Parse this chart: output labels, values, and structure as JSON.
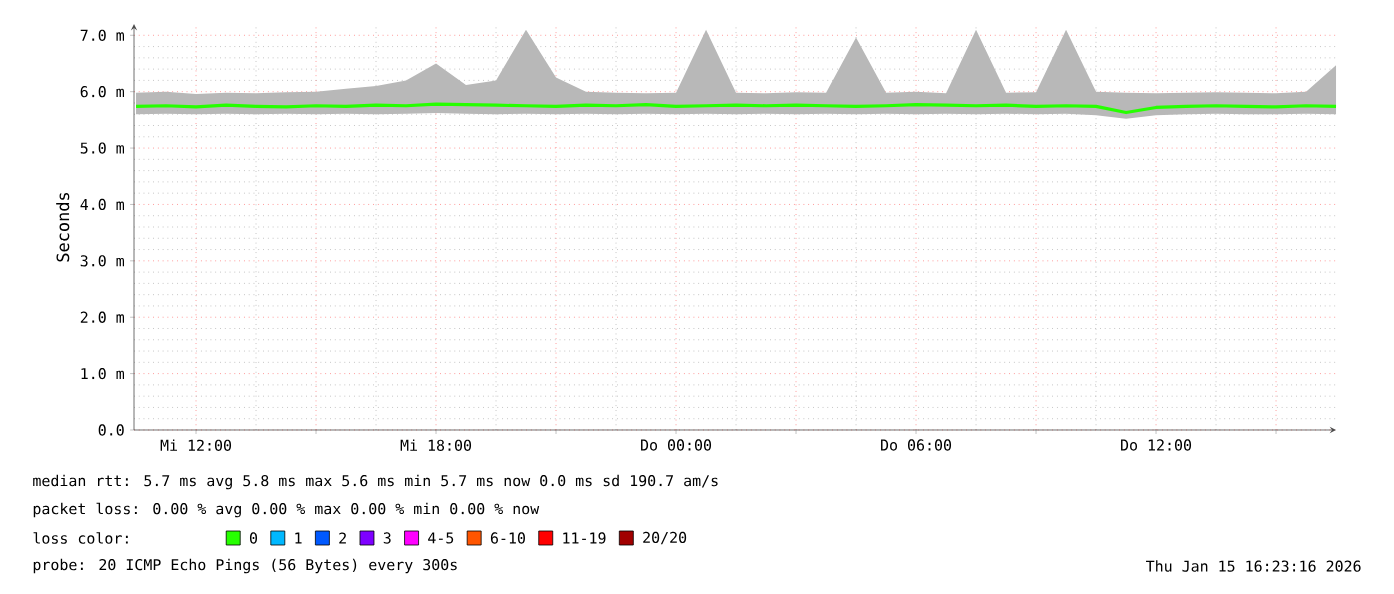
{
  "chart_data": {
    "type": "line",
    "ylabel": "Seconds",
    "legend_title": "loss color:",
    "legend": "bottom",
    "grid": true,
    "x": [
      "2026-01-14T10:30",
      "2026-01-14T11:15",
      "2026-01-14T12:00",
      "2026-01-14T12:45",
      "2026-01-14T13:30",
      "2026-01-14T14:15",
      "2026-01-14T15:00",
      "2026-01-14T15:45",
      "2026-01-14T16:30",
      "2026-01-14T17:15",
      "2026-01-14T18:00",
      "2026-01-14T18:45",
      "2026-01-14T19:30",
      "2026-01-14T20:15",
      "2026-01-14T21:00",
      "2026-01-14T21:45",
      "2026-01-14T22:30",
      "2026-01-14T23:15",
      "2026-01-15T00:00",
      "2026-01-15T00:45",
      "2026-01-15T01:30",
      "2026-01-15T02:15",
      "2026-01-15T03:00",
      "2026-01-15T03:45",
      "2026-01-15T04:30",
      "2026-01-15T05:15",
      "2026-01-15T06:00",
      "2026-01-15T06:45",
      "2026-01-15T07:30",
      "2026-01-15T08:15",
      "2026-01-15T09:00",
      "2026-01-15T09:45",
      "2026-01-15T10:30",
      "2026-01-15T11:15",
      "2026-01-15T12:00",
      "2026-01-15T12:45",
      "2026-01-15T13:30",
      "2026-01-15T14:15",
      "2026-01-15T15:00",
      "2026-01-15T15:45",
      "2026-01-15T16:30"
    ],
    "xlim": [
      "2026-01-14T10:27",
      "2026-01-15T16:30"
    ],
    "xticks": [
      {
        "value": "2026-01-14T12:00",
        "label": "Mi 12:00"
      },
      {
        "value": "2026-01-14T15:00",
        "label": null
      },
      {
        "value": "2026-01-14T18:00",
        "label": "Mi 18:00"
      },
      {
        "value": "2026-01-14T21:00",
        "label": null
      },
      {
        "value": "2026-01-15T00:00",
        "label": "Do 00:00"
      },
      {
        "value": "2026-01-15T03:00",
        "label": null
      },
      {
        "value": "2026-01-15T06:00",
        "label": "Do 06:00"
      },
      {
        "value": "2026-01-15T09:00",
        "label": null
      },
      {
        "value": "2026-01-15T12:00",
        "label": "Do 12:00"
      },
      {
        "value": "2026-01-15T15:00",
        "label": null
      }
    ],
    "ylim": [
      0,
      7.2
    ],
    "yticks": [
      {
        "value": 0,
        "label": "0.0"
      },
      {
        "value": 1,
        "label": "1.0 m"
      },
      {
        "value": 2,
        "label": "2.0 m"
      },
      {
        "value": 3,
        "label": "3.0 m"
      },
      {
        "value": 4,
        "label": "4.0 m"
      },
      {
        "value": 5,
        "label": "5.0 m"
      },
      {
        "value": 6,
        "label": "6.0 m"
      },
      {
        "value": 7,
        "label": "7.0 m"
      }
    ],
    "series": [
      {
        "name": "0",
        "color": "#26ff00",
        "values": [
          5.74,
          5.75,
          5.73,
          5.76,
          5.74,
          5.73,
          5.75,
          5.74,
          5.76,
          5.75,
          5.78,
          5.77,
          5.76,
          5.75,
          5.74,
          5.76,
          5.75,
          5.77,
          5.74,
          5.75,
          5.76,
          5.75,
          5.76,
          5.75,
          5.74,
          5.75,
          5.77,
          5.76,
          5.75,
          5.76,
          5.74,
          5.75,
          5.74,
          5.63,
          5.72,
          5.74,
          5.75,
          5.74,
          5.73,
          5.75,
          5.74
        ],
        "lower": [
          5.6,
          5.61,
          5.6,
          5.61,
          5.6,
          5.61,
          5.6,
          5.61,
          5.6,
          5.61,
          5.62,
          5.61,
          5.6,
          5.61,
          5.6,
          5.61,
          5.6,
          5.61,
          5.6,
          5.61,
          5.6,
          5.61,
          5.6,
          5.61,
          5.6,
          5.61,
          5.6,
          5.61,
          5.6,
          5.61,
          5.6,
          5.61,
          5.58,
          5.52,
          5.58,
          5.6,
          5.61,
          5.6,
          5.6,
          5.61,
          5.6
        ],
        "upper": [
          5.98,
          6.0,
          5.96,
          5.98,
          5.97,
          5.99,
          6.0,
          6.05,
          6.1,
          6.2,
          6.5,
          6.12,
          6.2,
          7.1,
          6.25,
          6.0,
          5.98,
          5.97,
          5.98,
          7.1,
          5.98,
          5.97,
          5.99,
          5.98,
          6.96,
          5.98,
          6.0,
          5.97,
          7.1,
          5.98,
          5.99,
          7.1,
          6.0,
          5.98,
          5.97,
          5.98,
          5.99,
          5.98,
          5.97,
          6.0,
          6.47
        ]
      },
      {
        "name": "1",
        "color": "#00b8ff",
        "values": [
          null,
          null,
          null,
          null,
          null,
          null,
          null,
          null,
          null,
          null,
          null,
          null,
          null,
          null,
          null,
          null,
          null,
          null,
          null,
          null,
          null,
          null,
          null,
          null,
          null,
          null,
          null,
          null,
          null,
          null,
          null,
          null,
          null,
          null,
          null,
          null,
          null,
          null,
          null,
          null,
          null
        ]
      },
      {
        "name": "2",
        "color": "#0059ff",
        "values": [
          null,
          null,
          null,
          null,
          null,
          null,
          null,
          null,
          null,
          null,
          null,
          null,
          null,
          null,
          null,
          null,
          null,
          null,
          null,
          null,
          null,
          null,
          null,
          null,
          null,
          null,
          null,
          null,
          null,
          null,
          null,
          null,
          null,
          null,
          null,
          null,
          null,
          null,
          null,
          null,
          null
        ]
      },
      {
        "name": "3",
        "color": "#7e00ff",
        "values": [
          null,
          null,
          null,
          null,
          null,
          null,
          null,
          null,
          null,
          null,
          null,
          null,
          null,
          null,
          null,
          null,
          null,
          null,
          null,
          null,
          null,
          null,
          null,
          null,
          null,
          null,
          null,
          null,
          null,
          null,
          null,
          null,
          null,
          null,
          null,
          null,
          null,
          null,
          null,
          null,
          null
        ]
      },
      {
        "name": "4-5",
        "color": "#ff00ff",
        "values": [
          null,
          null,
          null,
          null,
          null,
          null,
          null,
          null,
          null,
          null,
          null,
          null,
          null,
          null,
          null,
          null,
          null,
          null,
          null,
          null,
          null,
          null,
          null,
          null,
          null,
          null,
          null,
          null,
          null,
          null,
          null,
          null,
          null,
          null,
          null,
          null,
          null,
          null,
          null,
          null,
          null
        ]
      },
      {
        "name": "6-10",
        "color": "#ff5500",
        "values": [
          null,
          null,
          null,
          null,
          null,
          null,
          null,
          null,
          null,
          null,
          null,
          null,
          null,
          null,
          null,
          null,
          null,
          null,
          null,
          null,
          null,
          null,
          null,
          null,
          null,
          null,
          null,
          null,
          null,
          null,
          null,
          null,
          null,
          null,
          null,
          null,
          null,
          null,
          null,
          null,
          null
        ]
      },
      {
        "name": "11-19",
        "color": "#ff0000",
        "values": [
          null,
          null,
          null,
          null,
          null,
          null,
          null,
          null,
          null,
          null,
          null,
          null,
          null,
          null,
          null,
          null,
          null,
          null,
          null,
          null,
          null,
          null,
          null,
          null,
          null,
          null,
          null,
          null,
          null,
          null,
          null,
          null,
          null,
          null,
          null,
          null,
          null,
          null,
          null,
          null,
          null
        ]
      },
      {
        "name": "20/20",
        "color": "#a10000",
        "values": [
          null,
          null,
          null,
          null,
          null,
          null,
          null,
          null,
          null,
          null,
          null,
          null,
          null,
          null,
          null,
          null,
          null,
          null,
          null,
          null,
          null,
          null,
          null,
          null,
          null,
          null,
          null,
          null,
          null,
          null,
          null,
          null,
          null,
          null,
          null,
          null,
          null,
          null,
          null,
          null,
          null
        ]
      }
    ],
    "annotations": [
      "median rtt: 5.7 ms avg 5.8 ms max 5.6 ms min 5.7 ms now 0.0 ms sd 190.7 am/s",
      "packet loss: 0.00 % avg 0.00 % max 0.00 % min 0.00 % now",
      "probe: 20 ICMP Echo Pings (56 Bytes) every 300s",
      "Thu Jan 15 16:23:16 2026"
    ]
  }
}
